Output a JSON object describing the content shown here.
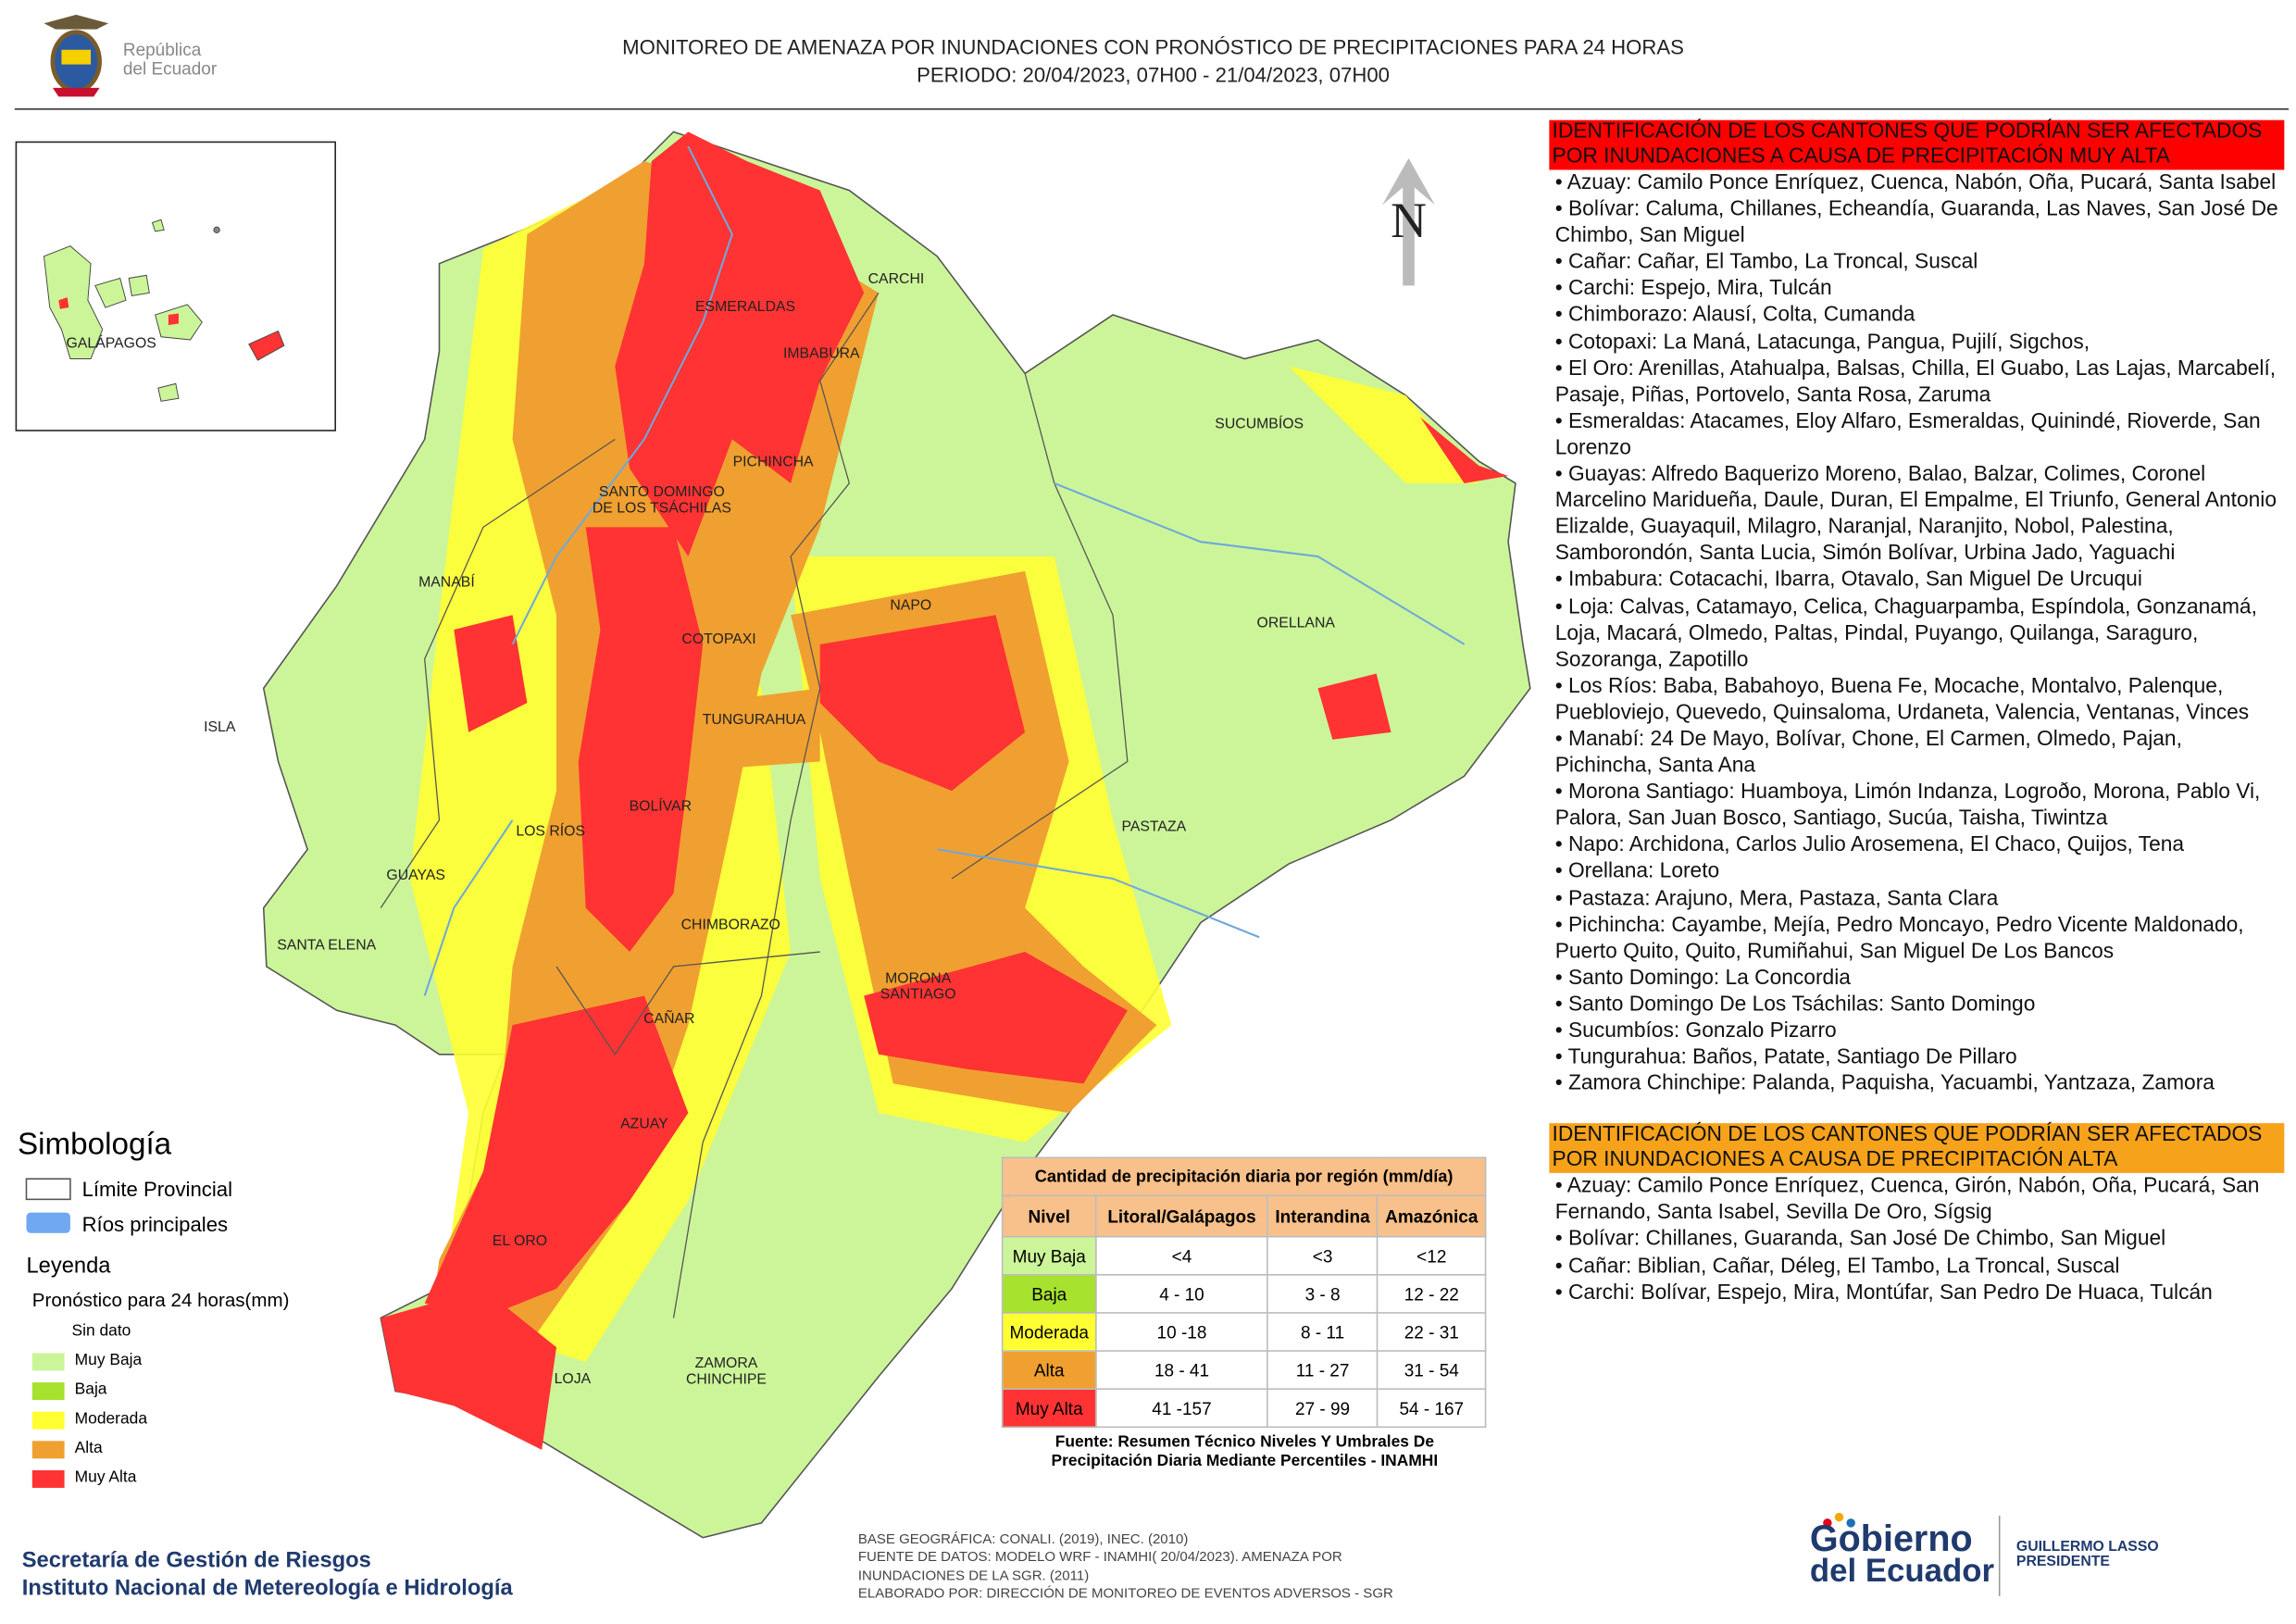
{
  "header": {
    "title_line1": "MONITOREO DE AMENAZA POR INUNDACIONES  CON PRONÓSTICO DE  PRECIPITACIONES PARA 24 HORAS",
    "title_line2": "PERIODO: 20/04/2023, 07H00 - 21/04/2023, 07H00",
    "logo_line1": "República",
    "logo_line2": "del Ecuador"
  },
  "map": {
    "north": "N",
    "inset_label": "GALÁPAGOS",
    "labels": [
      "CARCHI",
      "ESMERALDAS",
      "IMBABURA",
      "SUCUMBÍOS",
      "PICHINCHA",
      "SANTO DOMINGO DE LOS TSÁCHILAS",
      "MANABÍ",
      "ORELLANA",
      "NAPO",
      "COTOPAXI",
      "TUNGURAHUA",
      "ISLA",
      "BOLÍVAR",
      "LOS RÍOS",
      "PASTAZA",
      "GUAYAS",
      "CHIMBORAZO",
      "SANTA ELENA",
      "MORONA SANTIAGO",
      "CAÑAR",
      "AZUAY",
      "EL ORO",
      "ZAMORA CHINCHIPE",
      "LOJA"
    ]
  },
  "legend": {
    "title": "Simbología",
    "symbols": [
      "Límite Provincial",
      "Ríos principales"
    ],
    "subtitle": "Leyenda",
    "caption": "Pronóstico para 24 horas(mm)",
    "classes": [
      {
        "name": "Sin dato",
        "color": "#ffffff"
      },
      {
        "name": "Muy Baja",
        "color": "#ccf599"
      },
      {
        "name": "Baja",
        "color": "#a6e22e"
      },
      {
        "name": "Moderada",
        "color": "#ffff33"
      },
      {
        "name": "Alta",
        "color": "#f0a030"
      },
      {
        "name": "Muy Alta",
        "color": "#ff3333"
      }
    ]
  },
  "table": {
    "title": "Cantidad de precipitación diaria por región (mm/día)",
    "header": [
      "Nivel",
      "Litoral/Galápagos",
      "Interandina",
      "Amazónica"
    ],
    "rows": [
      [
        "Muy Baja",
        "<4",
        "<3",
        "<12"
      ],
      [
        "Baja",
        "4 - 10",
        "3 - 8",
        "12 - 22"
      ],
      [
        "Moderada",
        "10 -18",
        "8 - 11",
        "22 - 31"
      ],
      [
        "Alta",
        "18 - 41",
        "11 - 27",
        "31 - 54"
      ],
      [
        "Muy Alta",
        "41 -157",
        "27 - 99",
        "54 - 167"
      ]
    ],
    "source": "Fuente: Resumen Técnico Niveles Y Umbrales De Precipitación Diaria Mediante Percentiles - INAMHI"
  },
  "panel": {
    "very_high": {
      "heading": "IDENTIFICACIÓN DE LOS CANTONES QUE PODRÍAN SER AFECTADOS POR INUNDACIONES  A CAUSA DE PRECIPITACIÓN MUY ALTA",
      "items": [
        "• Azuay: Camilo Ponce Enríquez, Cuenca, Nabón, Oña, Pucará, Santa Isabel",
        "• Bolívar: Caluma, Chillanes, Echeandía, Guaranda, Las Naves, San José De Chimbo, San Miguel",
        "• Cañar: Cañar, El Tambo, La Troncal, Suscal",
        "• Carchi: Espejo, Mira, Tulcán",
        "• Chimborazo: Alausí, Colta, Cumanda",
        "• Cotopaxi: La Maná, Latacunga, Pangua, Pujilí, Sigchos,",
        "• El Oro: Arenillas, Atahualpa, Balsas, Chilla, El Guabo, Las Lajas, Marcabelí, Pasaje, Piñas, Portovelo, Santa Rosa, Zaruma",
        "• Esmeraldas: Atacames, Eloy Alfaro, Esmeraldas, Quinindé, Rioverde, San Lorenzo",
        "• Guayas: Alfredo Baquerizo Moreno, Balao, Balzar, Colimes, Coronel Marcelino Maridueña, Daule, Duran, El Empalme, El Triunfo, General Antonio Elizalde, Guayaquil, Milagro, Naranjal, Naranjito, Nobol, Palestina, Samborondón, Santa Lucia, Simón Bolívar, Urbina Jado, Yaguachi",
        "• Imbabura: Cotacachi, Ibarra, Otavalo, San Miguel De Urcuqui",
        "• Loja: Calvas, Catamayo, Celica, Chaguarpamba, Espíndola, Gonzanamá, Loja, Macará, Olmedo, Paltas, Pindal, Puyango, Quilanga, Saraguro, Sozoranga, Zapotillo",
        "• Los Ríos: Baba, Babahoyo, Buena Fe, Mocache, Montalvo, Palenque, Puebloviejo, Quevedo, Quinsaloma, Urdaneta, Valencia, Ventanas, Vinces",
        "• Manabí: 24 De Mayo, Bolívar, Chone, El Carmen, Olmedo, Pajan, Pichincha, Santa Ana",
        "• Morona Santiago: Huamboya, Limón Indanza, Logroðo, Morona, Pablo Vi, Palora, San Juan Bosco, Santiago, Sucúa, Taisha, Tiwintza",
        "• Napo: Archidona, Carlos Julio Arosemena, El Chaco, Quijos, Tena",
        "• Orellana: Loreto",
        "• Pastaza: Arajuno, Mera, Pastaza, Santa Clara",
        "• Pichincha: Cayambe, Mejía, Pedro Moncayo, Pedro Vicente Maldonado, Puerto Quito, Quito, Rumiñahui, San Miguel De Los Bancos",
        "• Santo Domingo: La Concordia",
        "• Santo Domingo De Los Tsáchilas: Santo Domingo",
        "• Sucumbíos: Gonzalo Pizarro",
        "• Tungurahua: Baños, Patate, Santiago De Pillaro",
        "• Zamora Chinchipe: Palanda, Paquisha, Yacuambi, Yantzaza, Zamora"
      ]
    },
    "high": {
      "heading": "IDENTIFICACIÓN DE LOS CANTONES QUE  PODRÍAN SER AFECTADOS POR INUNDACIONES  A CAUSA DE PRECIPITACIÓN ALTA",
      "items": [
        "• Azuay: Camilo Ponce Enríquez, Cuenca, Girón, Nabón, Oña, Pucará, San Fernando, Santa Isabel, Sevilla De Oro, Sígsig",
        "• Bolívar: Chillanes, Guaranda, San José De Chimbo, San Miguel",
        "• Cañar: Biblian, Cañar, Déleg, El Tambo, La Troncal, Suscal",
        "• Carchi: Bolívar, Espejo, Mira, Montúfar, San Pedro De Huaca, Tulcán"
      ]
    }
  },
  "footer": {
    "institutions": [
      "Secretaría de Gestión de Riesgos",
      "Instituto Nacional de Metereología e Hidrología"
    ],
    "credits": [
      "BASE GEOGRÁFICA: CONALI. (2019), INEC. (2010)",
      "FUENTE DE DATOS: MODELO WRF - INAMHI( 20/04/2023).  AMENAZA POR",
      "INUNDACIONES DE LA SGR. (2011)",
      "ELABORADO POR: DIRECCIÓN DE MONITOREO DE EVENTOS ADVERSOS - SGR"
    ],
    "gov_logo": [
      "Gobierno",
      "del Ecuador"
    ],
    "president": [
      "GUILLERMO LASSO",
      "PRESIDENTE"
    ]
  }
}
